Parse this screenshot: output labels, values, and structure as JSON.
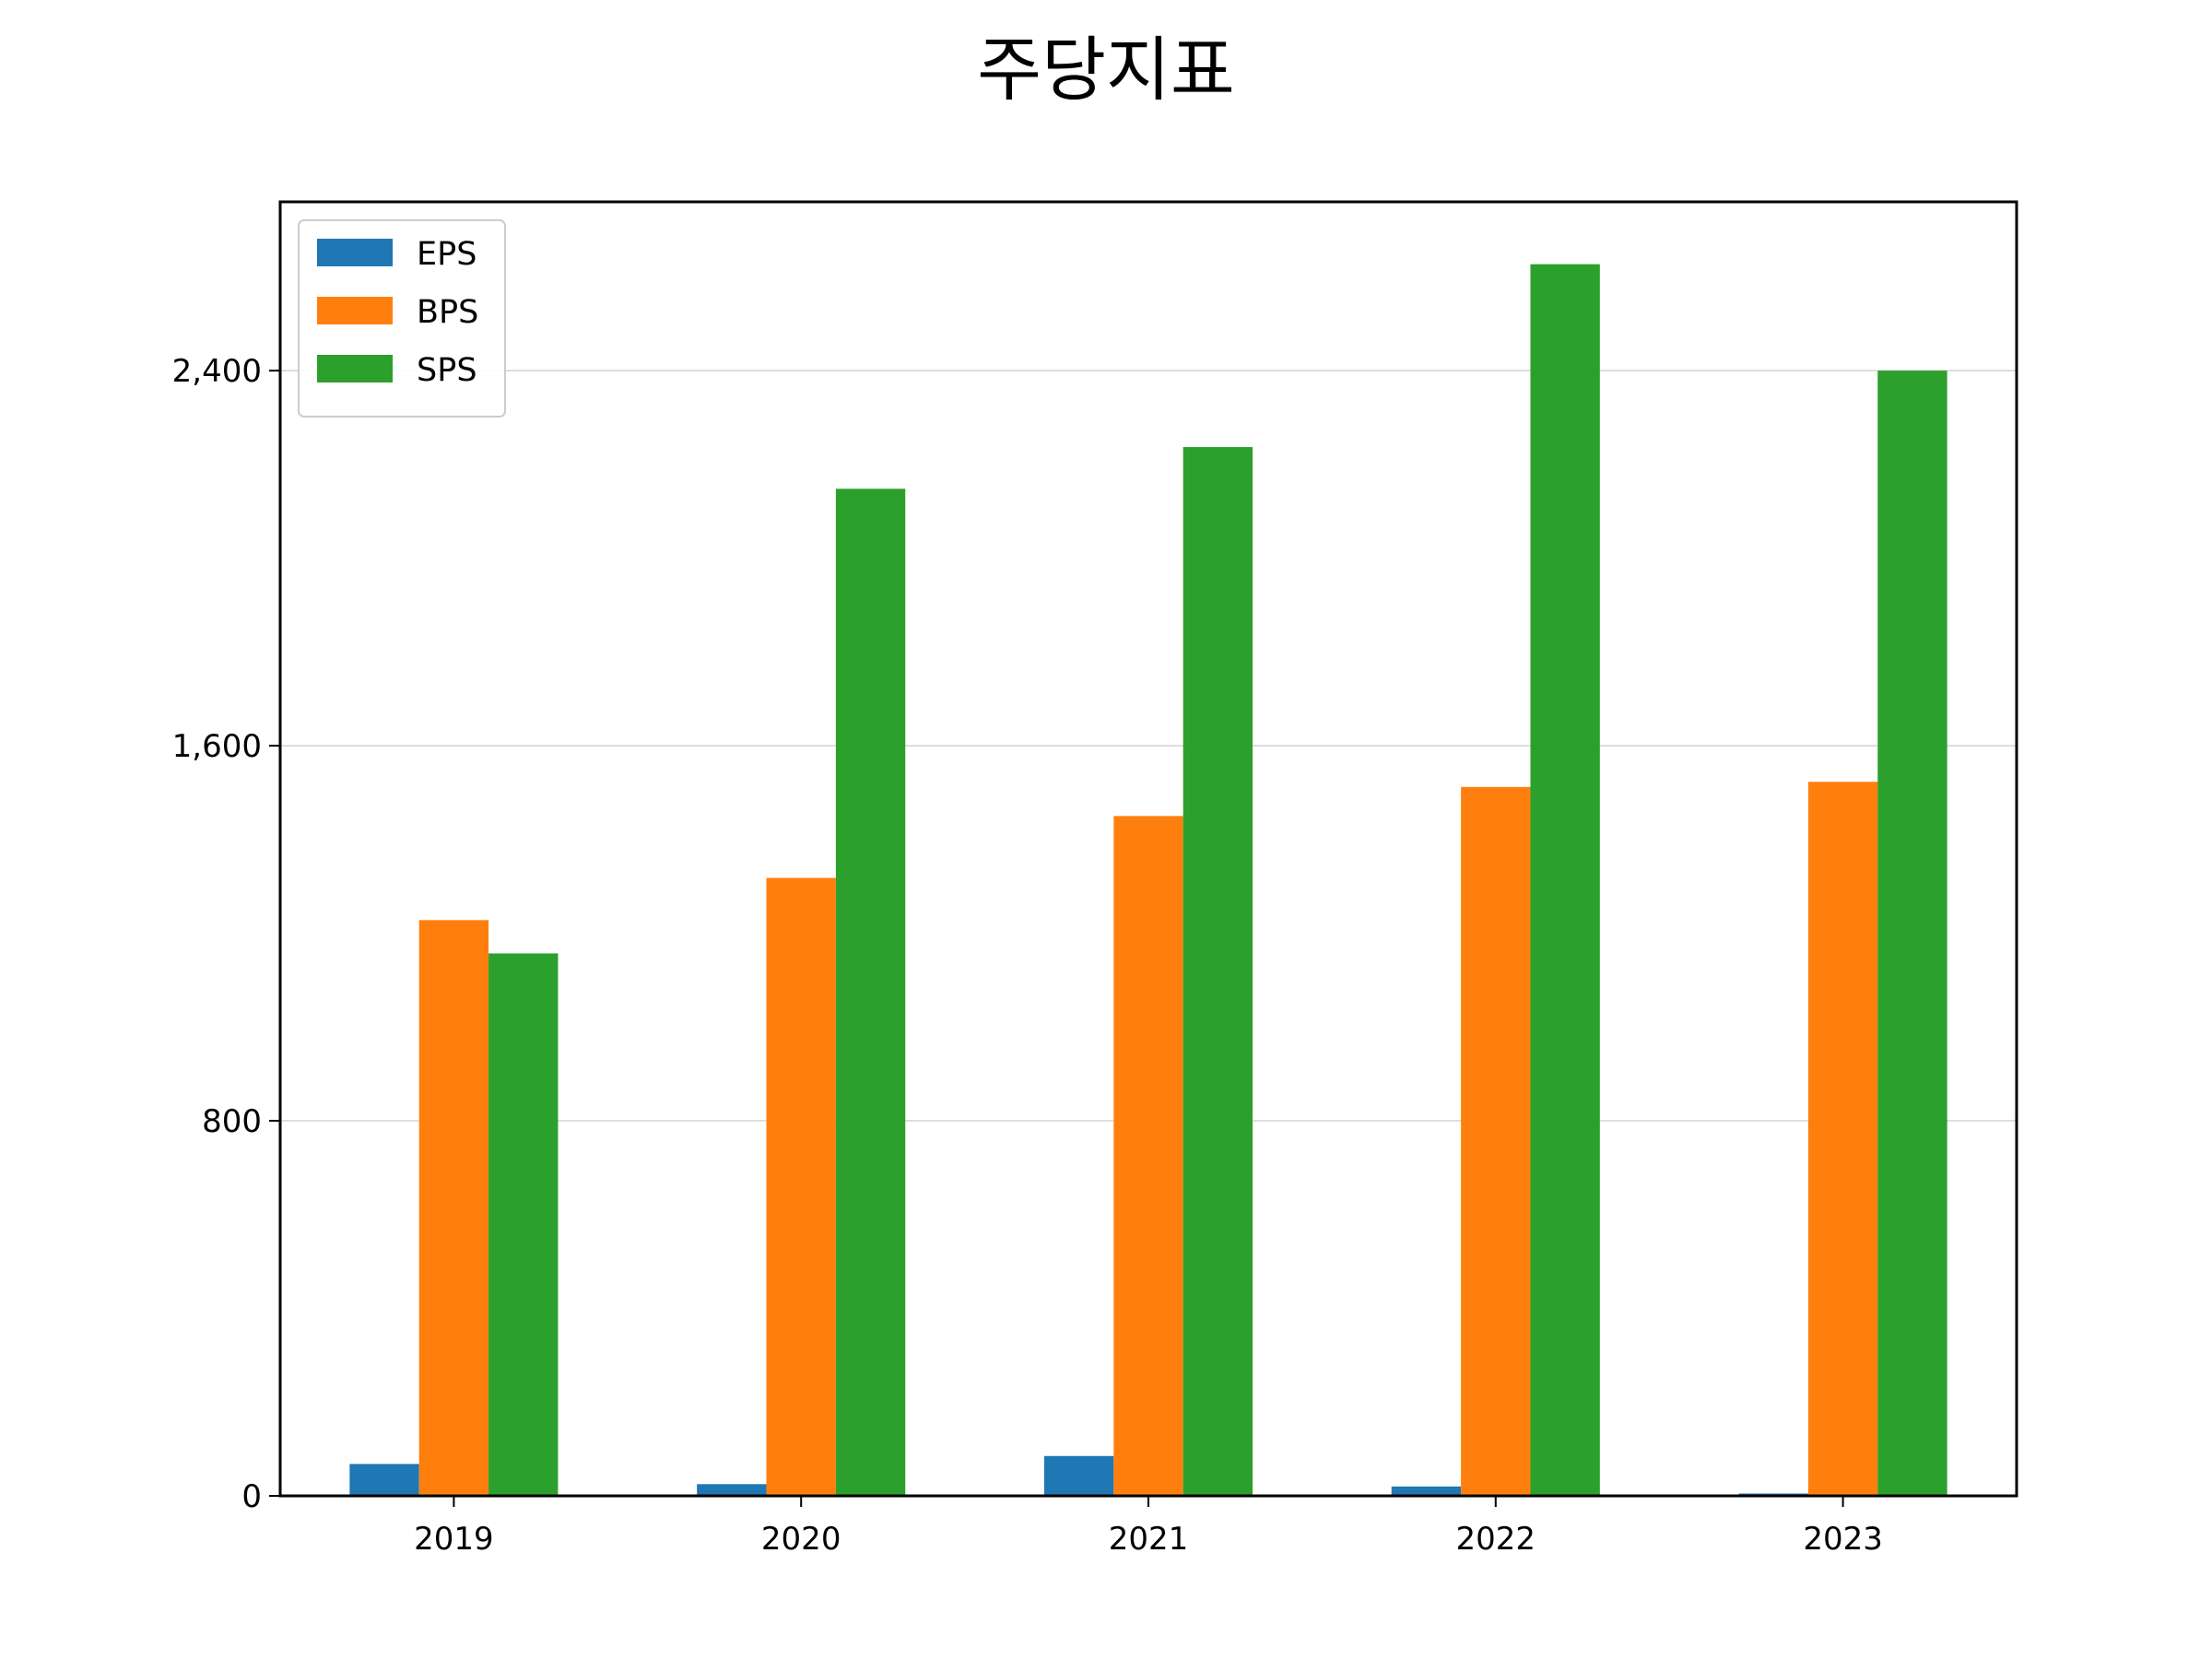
{
  "chart_data": {
    "type": "bar",
    "title": "주당지표",
    "xlabel": "",
    "ylabel": "",
    "categories": [
      "2019",
      "2020",
      "2021",
      "2022",
      "2023"
    ],
    "series": [
      {
        "name": "EPS",
        "color": "#1f77b4",
        "values": [
          68,
          25,
          85,
          20,
          5
        ]
      },
      {
        "name": "BPS",
        "color": "#ff7f0e",
        "values": [
          1228,
          1318,
          1450,
          1512,
          1523
        ]
      },
      {
        "name": "SPS",
        "color": "#2ca02c",
        "values": [
          1157,
          2148,
          2237,
          2627,
          2400
        ]
      }
    ],
    "yticks": [
      0,
      800,
      1600,
      2400
    ],
    "ytick_labels": [
      "0",
      "800",
      "1,600",
      "2,400"
    ],
    "ylim": [
      0,
      2760
    ],
    "grid": "y",
    "legend_position": "top-left"
  }
}
